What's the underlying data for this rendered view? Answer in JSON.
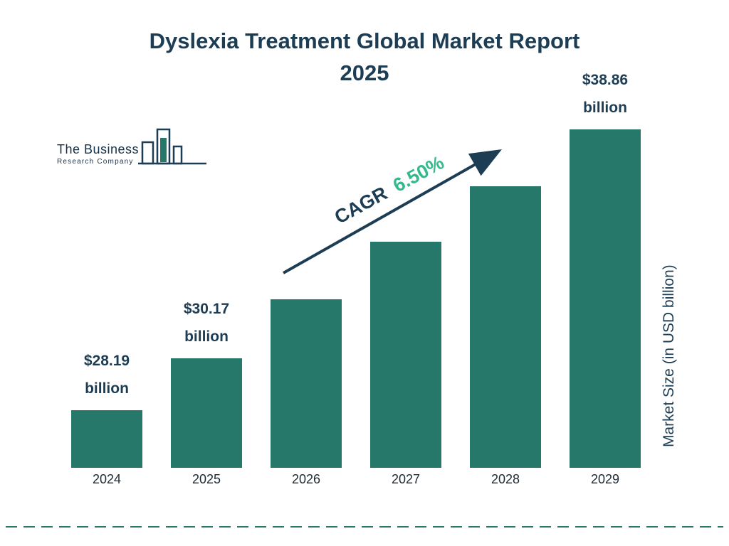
{
  "title": {
    "line1": "Dyslexia Treatment Global Market Report",
    "line2": "2025"
  },
  "logo": {
    "line1": "The Business",
    "line2": "Research Company"
  },
  "cagr": {
    "label": "CAGR",
    "value": "6.50%"
  },
  "y_axis_label": "Market Size (in USD billion)",
  "colors": {
    "bar": "#26796a",
    "navy": "#1d3d54",
    "mint": "#33b98c",
    "dashed_rule": "#26796a"
  },
  "chart_data": {
    "type": "bar",
    "title": "Dyslexia Treatment Global Market Report 2025",
    "categories": [
      "2024",
      "2025",
      "2026",
      "2027",
      "2028",
      "2029"
    ],
    "values": [
      28.19,
      30.17,
      32.4,
      34.6,
      36.7,
      38.86
    ],
    "bar_labels": [
      {
        "value": "$28.19",
        "unit": "billion"
      },
      {
        "value": "$30.17",
        "unit": "billion"
      },
      null,
      null,
      null,
      {
        "value": "$38.86",
        "unit": "billion"
      }
    ],
    "ylabel": "Market Size (in USD billion)",
    "xlabel": "",
    "baseline_value": 26,
    "annotations": [
      "CAGR 6.50%"
    ],
    "grid": false,
    "legend": false
  }
}
